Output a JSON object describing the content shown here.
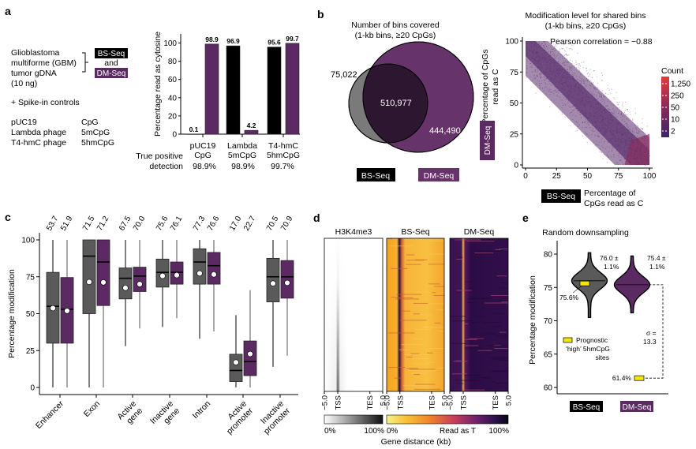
{
  "colors": {
    "bs": "#000000",
    "dm": "#5c2a62",
    "bs_box": "#5a5a5a",
    "dm_box": "#5c2a62",
    "venn_bs": "#7a7a7a",
    "venn_dm": "#66336b",
    "venn_overlap": "#2c1630",
    "yellow": "#f5e800"
  },
  "panel_a": {
    "label": "a",
    "sample_lines": [
      "Glioblastoma",
      "multiforme (GBM)",
      "tumor gDNA",
      "(10 ng)"
    ],
    "method_bs": "BS-Seq",
    "method_and": "and",
    "method_dm": "DM-Seq",
    "spike_header": "+ Spike-in controls",
    "spikes": [
      {
        "name": "pUC19",
        "mod": "CpG"
      },
      {
        "name": "Lambda phage",
        "mod": "5mCpG"
      },
      {
        "name": "T4-hmC phage",
        "mod": "5hmCpG"
      }
    ],
    "tp_label_1": "True positive",
    "tp_label_2": "detection",
    "tp_values": [
      "98.9%",
      "98.9%",
      "99.7%"
    ]
  },
  "panel_b": {
    "label": "b",
    "venn_title_1": "Number of bins covered",
    "venn_title_2": "(1-kb bins, ≥20 CpGs)",
    "bs_only": "75,022",
    "shared": "510,977",
    "dm_only": "444,490",
    "legend_bs": "BS-Seq",
    "legend_dm": "DM-Seq",
    "scatter_title_1": "Modification level for shared bins",
    "scatter_title_2": "(1-kb bins, ≥20 CpGs)",
    "pearson": "Pearson correlation = −0.88",
    "ylabel_1": "Percentage of CpGs",
    "ylabel_2": "read as C",
    "ytag": "DM-Seq",
    "xtag": "BS-Seq",
    "xlabel_1": "Percentage of",
    "xlabel_2": "CpGs read as C",
    "count_title": "Count",
    "count_ticks": [
      "1,250",
      "250",
      "50",
      "10",
      "2"
    ]
  },
  "panel_d": {
    "label": "d",
    "titles": [
      "H3K4me3",
      "BS-Seq",
      "DM-Seq"
    ],
    "xticks": [
      "−5.0",
      "TSS",
      "TES",
      "5.0"
    ],
    "cbar1_min": "0%",
    "cbar1_max": "100%",
    "cbar2_min": "0%",
    "cbar2_mid": "Read as T",
    "cbar2_max": "100%",
    "xlabel": "Gene distance (kb)"
  },
  "panel_e": {
    "label": "e",
    "title": "Random downsampling",
    "bs_stat_1": "76.0 ±",
    "bs_stat_2": "1.1%",
    "dm_stat_1": "75.4 ±",
    "dm_stat_2": "1.1%",
    "bs_marker_label": "75.6%",
    "dm_marker_label": "61.4%",
    "sigma_1": "σ =",
    "sigma_2": "13.3",
    "legend_1": "Prognostic",
    "legend_2": "‘high’ 5hmCpG",
    "legend_3": "sites",
    "xtag_bs": "BS-Seq",
    "xtag_dm": "DM-Seq"
  },
  "chart_data": [
    {
      "id": "a",
      "type": "bar",
      "title": "",
      "ylabel": "Percentage read as cytosine",
      "ylim": [
        0,
        100
      ],
      "yticks": [
        0,
        20,
        40,
        60,
        80,
        100
      ],
      "categories": [
        "pUC19\nCpG",
        "Lambda\n5mCpG",
        "T4-hmC\n5hmCpG"
      ],
      "category_lines": [
        [
          "pUC19",
          "CpG"
        ],
        [
          "Lambda",
          "5mCpG"
        ],
        [
          "T4-hmC",
          "5hmCpG"
        ]
      ],
      "series": [
        {
          "name": "BS-Seq",
          "values": [
            0.1,
            96.9,
            95.6
          ],
          "labels": [
            "0.1",
            "96.9",
            "95.6"
          ]
        },
        {
          "name": "DM-Seq",
          "values": [
            98.9,
            4.2,
            99.7
          ],
          "labels": [
            "98.9",
            "4.2",
            "99.7"
          ]
        }
      ]
    },
    {
      "id": "b-venn",
      "type": "venn",
      "sets": [
        {
          "name": "BS-Seq",
          "only": 75022
        },
        {
          "name": "DM-Seq",
          "only": 444490
        }
      ],
      "overlap": 510977
    },
    {
      "id": "b-scatter",
      "type": "heatmap",
      "title": "Modification level for shared bins (1-kb bins, ≥20 CpGs)",
      "xlabel": "BS-Seq Percentage of CpGs read as C",
      "ylabel": "DM-Seq Percentage of CpGs read as C",
      "xlim": [
        0,
        100
      ],
      "ylim": [
        0,
        100
      ],
      "xticks": [
        0,
        25,
        50,
        75,
        100
      ],
      "yticks": [
        0,
        25,
        50,
        75,
        100
      ],
      "annotation": "Pearson correlation = −0.88",
      "pearson_r": -0.88,
      "color_scale": {
        "title": "Count",
        "ticks": [
          2,
          10,
          50,
          250,
          1250
        ]
      }
    },
    {
      "id": "c",
      "type": "box",
      "ylabel": "Percentage modification",
      "ylim": [
        0,
        100
      ],
      "yticks": [
        0,
        25,
        50,
        75,
        100
      ],
      "categories": [
        "Enhancer",
        "Exon",
        "Active gene",
        "Inactive gene",
        "Intron",
        "Active promoter",
        "Inactive promoter"
      ],
      "category_lines": [
        [
          "Enhancer"
        ],
        [
          "Exon"
        ],
        [
          "Active",
          "gene"
        ],
        [
          "Inactive",
          "gene"
        ],
        [
          "Intron"
        ],
        [
          "Active",
          "promoter"
        ],
        [
          "Inactive",
          "promoter"
        ]
      ],
      "series": [
        {
          "name": "BS-Seq",
          "mean_labels": [
            "53.7",
            "71.5",
            "67.5",
            "75.6",
            "77.3",
            "17.0",
            "70.5"
          ],
          "stats": [
            {
              "wlo": 0,
              "q1": 30,
              "med": 55,
              "q3": 78,
              "whi": 100,
              "mean": 53.7
            },
            {
              "wlo": 0,
              "q1": 50,
              "med": 89,
              "q3": 100,
              "whi": 100,
              "mean": 71.5
            },
            {
              "wlo": 28,
              "q1": 60,
              "med": 74,
              "q3": 81,
              "whi": 100,
              "mean": 67.5
            },
            {
              "wlo": 41,
              "q1": 68,
              "med": 78,
              "q3": 87,
              "whi": 100,
              "mean": 75.6
            },
            {
              "wlo": 33,
              "q1": 70,
              "med": 85,
              "q3": 94,
              "whi": 100,
              "mean": 77.3
            },
            {
              "wlo": 0,
              "q1": 4,
              "med": 11.5,
              "q3": 22.5,
              "whi": 49,
              "mean": 17.0
            },
            {
              "wlo": 14,
              "q1": 58,
              "med": 75,
              "q3": 87.5,
              "whi": 100,
              "mean": 70.5
            }
          ]
        },
        {
          "name": "DM-Seq",
          "mean_labels": [
            "51.9",
            "71.2",
            "70.0",
            "76.1",
            "76.6",
            "22.7",
            "70.9"
          ],
          "stats": [
            {
              "wlo": 0,
              "q1": 30,
              "med": 53,
              "q3": 74.5,
              "whi": 100,
              "mean": 51.9
            },
            {
              "wlo": 0,
              "q1": 55.5,
              "med": 85,
              "q3": 100,
              "whi": 100,
              "mean": 71.2
            },
            {
              "wlo": 40,
              "q1": 65,
              "med": 75.5,
              "q3": 81.5,
              "whi": 100,
              "mean": 70.0
            },
            {
              "wlo": 47,
              "q1": 70,
              "med": 78,
              "q3": 85,
              "whi": 100,
              "mean": 76.1
            },
            {
              "wlo": 38,
              "q1": 70,
              "med": 82.5,
              "q3": 91.5,
              "whi": 100,
              "mean": 76.6
            },
            {
              "wlo": 0,
              "q1": 8,
              "med": 17.5,
              "q3": 31.5,
              "whi": 66,
              "mean": 22.7
            },
            {
              "wlo": 21.5,
              "q1": 60.5,
              "med": 75,
              "q3": 86,
              "whi": 100,
              "mean": 70.9
            }
          ]
        }
      ]
    },
    {
      "id": "d",
      "type": "heatmap",
      "panels": [
        "H3K4me3",
        "BS-Seq",
        "DM-Seq"
      ],
      "xlabel": "Gene distance (kb)",
      "xticks": [
        "−5.0",
        "TSS",
        "TES",
        "5.0"
      ],
      "colorbars": [
        {
          "min": "0%",
          "max": "100%"
        },
        {
          "min": "0%",
          "max": "100%",
          "label": "Read as T"
        }
      ]
    },
    {
      "id": "e",
      "type": "violin",
      "title": "Random downsampling",
      "ylabel": "Percentage modification",
      "ylim": [
        59,
        82
      ],
      "yticks": [
        60,
        65,
        70,
        75,
        80
      ],
      "categories": [
        "BS-Seq",
        "DM-Seq"
      ],
      "violins": [
        {
          "name": "BS-Seq",
          "mean": 76.0,
          "sd": 1.1,
          "min": 70.5,
          "max": 80.2
        },
        {
          "name": "DM-Seq",
          "mean": 75.4,
          "sd": 1.1,
          "min": 71.2,
          "max": 79.7
        }
      ],
      "markers": [
        {
          "name": "BS-Seq prognostic high 5hmCpG sites",
          "value": 75.6
        },
        {
          "name": "DM-Seq prognostic high 5hmCpG sites",
          "value": 61.4
        }
      ],
      "sigma": 13.3
    }
  ]
}
